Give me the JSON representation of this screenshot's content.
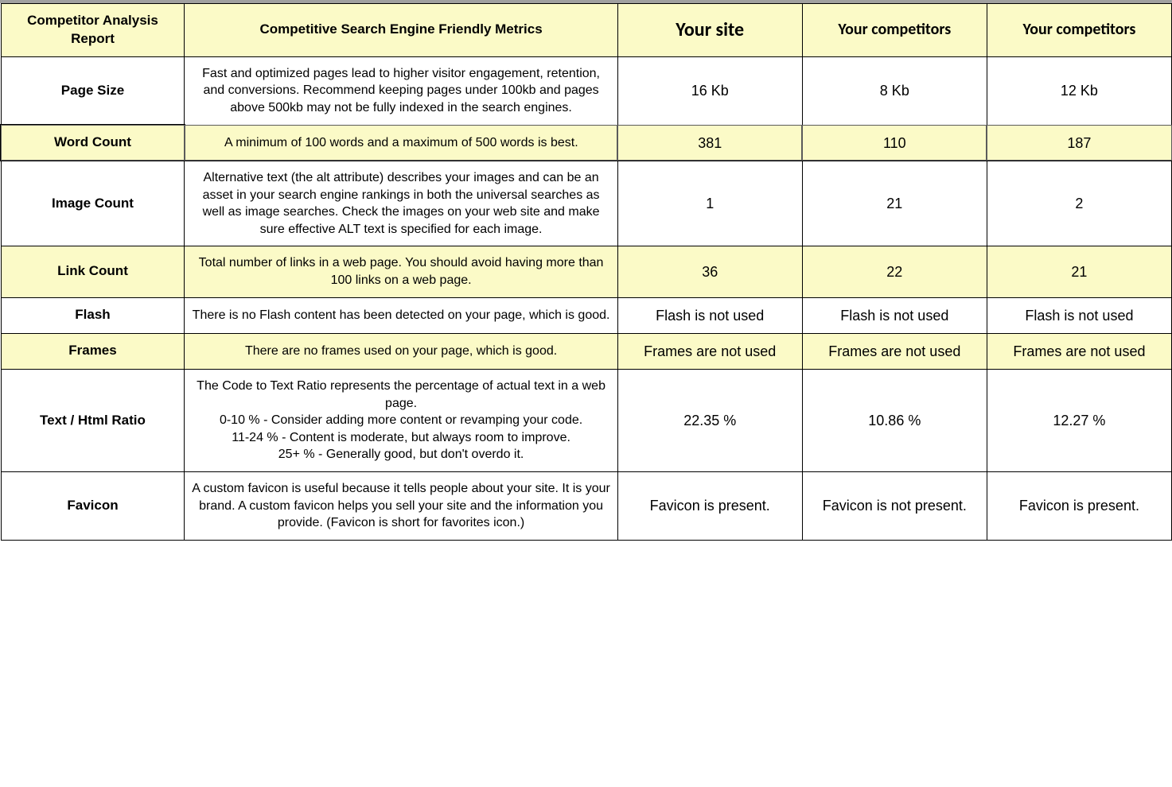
{
  "colors": {
    "highlight_bg": "#fbfac7",
    "border": "#000000",
    "background": "#ffffff",
    "text": "#000000",
    "topbar": "#a0a0a0"
  },
  "header": {
    "col0": "Competitor Analysis Report",
    "col1": "Competitive Search Engine Friendly Metrics",
    "col2": "Your site",
    "col3": "Your competitors",
    "col4": "Your competitors"
  },
  "rows": [
    {
      "metric": "Page Size",
      "desc": "Fast and optimized pages lead to higher visitor engagement, retention, and conversions. Recommend keeping pages under 100kb and pages above 500kb may not be fully indexed in the search engines.",
      "your": "16  Kb",
      "comp1": "8  Kb",
      "comp2": "12  Kb",
      "highlight": false,
      "selected": false
    },
    {
      "metric": "Word Count",
      "desc": "A minimum of 100 words and a maximum of 500 words is best.",
      "your": "381",
      "comp1": "110",
      "comp2": "187",
      "highlight": true,
      "selected": true
    },
    {
      "metric": "Image Count",
      "desc": "Alternative text (the alt attribute) describes your images and can be an asset in your search engine rankings in both the universal searches as well as image searches. Check the images on your web site and make sure effective ALT text is specified for each image.",
      "your": "1",
      "comp1": "21",
      "comp2": "2",
      "highlight": false,
      "selected": false
    },
    {
      "metric": "Link Count",
      "desc": "Total number of links in a web page. You should avoid having more than 100 links on a web page.",
      "your": "36",
      "comp1": "22",
      "comp2": "21",
      "highlight": true,
      "selected": false
    },
    {
      "metric": "Flash",
      "desc": "There is no Flash content has been detected on your page, which is good.",
      "your": "Flash is not used",
      "comp1": "Flash is not used",
      "comp2": "Flash is not used",
      "highlight": false,
      "selected": false
    },
    {
      "metric": "Frames",
      "desc": "There are no frames used on your page, which is good.",
      "your": "Frames are not used",
      "comp1": "Frames are not used",
      "comp2": "Frames are not used",
      "highlight": true,
      "selected": false
    },
    {
      "metric": "Text / Html Ratio",
      "desc": "The Code to Text Ratio represents the percentage of actual text in a web page.\n0-10 % - Consider adding more content or revamping your code.\n11-24 % - Content is moderate, but always room to improve.\n25+ % - Generally good, but don't overdo it.",
      "your": "22.35 %",
      "comp1": "10.86 %",
      "comp2": "12.27 %",
      "highlight": false,
      "selected": false
    },
    {
      "metric": "Favicon",
      "desc": "A custom favicon is useful because it tells people about your site. It is your brand. A custom favicon helps you sell your site and the information you provide. (Favicon is short for favorites icon.)",
      "your": "Favicon is present.",
      "comp1": "Favicon is not present.",
      "comp2": "Favicon is present.",
      "highlight": false,
      "selected": false
    }
  ]
}
